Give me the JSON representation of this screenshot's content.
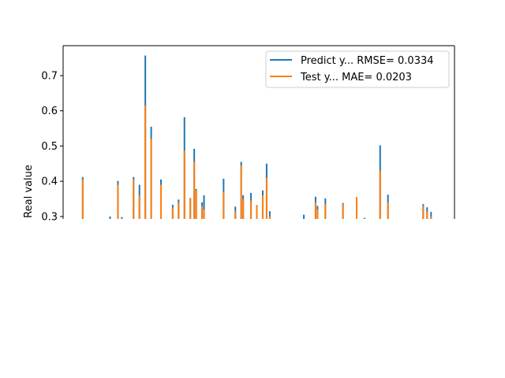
{
  "chart_data": {
    "type": "line",
    "title": "",
    "xlabel": "",
    "ylabel": "Real value",
    "ylim": [
      0.293,
      0.785
    ],
    "xlim": [
      0,
      100
    ],
    "yticks": [
      0.3,
      0.4,
      0.5,
      0.6,
      0.7
    ],
    "ytick_labels": [
      "0.3",
      "0.4",
      "0.5",
      "0.6",
      "0.7"
    ],
    "grid": false,
    "legend_position": "upper-right",
    "series": [
      {
        "name": "Predict y... RMSE= 0.0334",
        "color": "#1f77b4",
        "spikes": [
          {
            "x": 5.0,
            "y": 0.412
          },
          {
            "x": 12.0,
            "y": 0.3
          },
          {
            "x": 14.0,
            "y": 0.401
          },
          {
            "x": 15.0,
            "y": 0.298
          },
          {
            "x": 18.0,
            "y": 0.412
          },
          {
            "x": 19.5,
            "y": 0.39
          },
          {
            "x": 21.0,
            "y": 0.757
          },
          {
            "x": 22.5,
            "y": 0.555
          },
          {
            "x": 25.0,
            "y": 0.405
          },
          {
            "x": 28.0,
            "y": 0.333
          },
          {
            "x": 29.5,
            "y": 0.348
          },
          {
            "x": 31.0,
            "y": 0.582
          },
          {
            "x": 32.5,
            "y": 0.352
          },
          {
            "x": 33.5,
            "y": 0.492
          },
          {
            "x": 34.0,
            "y": 0.378
          },
          {
            "x": 35.5,
            "y": 0.34
          },
          {
            "x": 36.0,
            "y": 0.36
          },
          {
            "x": 41.0,
            "y": 0.407
          },
          {
            "x": 44.0,
            "y": 0.328
          },
          {
            "x": 45.5,
            "y": 0.455
          },
          {
            "x": 46.0,
            "y": 0.36
          },
          {
            "x": 48.0,
            "y": 0.367
          },
          {
            "x": 49.5,
            "y": 0.332
          },
          {
            "x": 51.0,
            "y": 0.374
          },
          {
            "x": 52.0,
            "y": 0.45
          },
          {
            "x": 52.8,
            "y": 0.315
          },
          {
            "x": 61.5,
            "y": 0.305
          },
          {
            "x": 64.5,
            "y": 0.356
          },
          {
            "x": 65.0,
            "y": 0.33
          },
          {
            "x": 67.0,
            "y": 0.351
          },
          {
            "x": 71.5,
            "y": 0.338
          },
          {
            "x": 75.0,
            "y": 0.355
          },
          {
            "x": 77.0,
            "y": 0.296
          },
          {
            "x": 81.0,
            "y": 0.502
          },
          {
            "x": 83.0,
            "y": 0.362
          },
          {
            "x": 92.0,
            "y": 0.335
          },
          {
            "x": 93.0,
            "y": 0.326
          },
          {
            "x": 94.0,
            "y": 0.313
          }
        ]
      },
      {
        "name": "Test y... MAE= 0.0203",
        "color": "#ff7f0e",
        "spikes": [
          {
            "x": 5.0,
            "y": 0.405
          },
          {
            "x": 12.0,
            "y": 0.293
          },
          {
            "x": 14.0,
            "y": 0.39
          },
          {
            "x": 15.0,
            "y": 0.293
          },
          {
            "x": 18.0,
            "y": 0.405
          },
          {
            "x": 19.5,
            "y": 0.36
          },
          {
            "x": 21.0,
            "y": 0.615
          },
          {
            "x": 22.5,
            "y": 0.52
          },
          {
            "x": 25.0,
            "y": 0.39
          },
          {
            "x": 28.0,
            "y": 0.325
          },
          {
            "x": 29.5,
            "y": 0.34
          },
          {
            "x": 31.0,
            "y": 0.487
          },
          {
            "x": 32.5,
            "y": 0.35
          },
          {
            "x": 33.5,
            "y": 0.455
          },
          {
            "x": 34.0,
            "y": 0.375
          },
          {
            "x": 35.5,
            "y": 0.33
          },
          {
            "x": 36.0,
            "y": 0.32
          },
          {
            "x": 41.0,
            "y": 0.37
          },
          {
            "x": 44.0,
            "y": 0.315
          },
          {
            "x": 45.5,
            "y": 0.445
          },
          {
            "x": 46.0,
            "y": 0.35
          },
          {
            "x": 48.0,
            "y": 0.345
          },
          {
            "x": 49.5,
            "y": 0.33
          },
          {
            "x": 51.0,
            "y": 0.36
          },
          {
            "x": 52.0,
            "y": 0.41
          },
          {
            "x": 52.8,
            "y": 0.3
          },
          {
            "x": 61.5,
            "y": 0.293
          },
          {
            "x": 64.5,
            "y": 0.34
          },
          {
            "x": 65.0,
            "y": 0.32
          },
          {
            "x": 67.0,
            "y": 0.335
          },
          {
            "x": 71.5,
            "y": 0.335
          },
          {
            "x": 75.0,
            "y": 0.355
          },
          {
            "x": 77.0,
            "y": 0.293
          },
          {
            "x": 81.0,
            "y": 0.43
          },
          {
            "x": 83.0,
            "y": 0.34
          },
          {
            "x": 92.0,
            "y": 0.33
          },
          {
            "x": 93.0,
            "y": 0.315
          },
          {
            "x": 94.0,
            "y": 0.3
          }
        ]
      }
    ]
  }
}
